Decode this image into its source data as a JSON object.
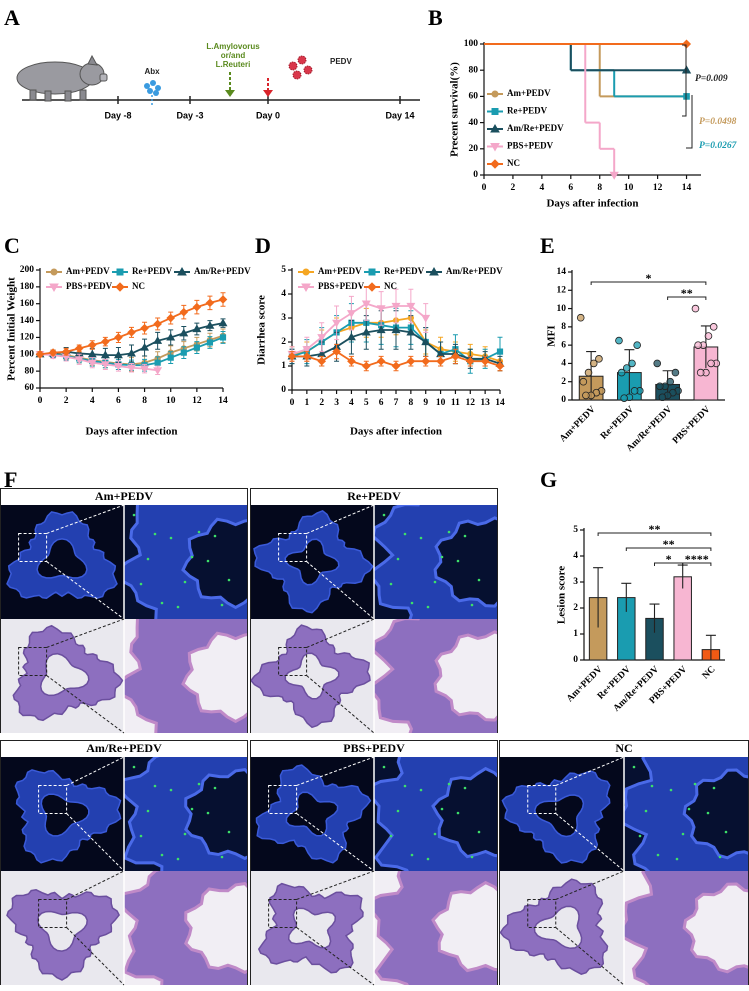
{
  "panel_labels": [
    "A",
    "B",
    "C",
    "D",
    "E",
    "F",
    "G"
  ],
  "timeline": {
    "days": [
      "Day -8",
      "Day -3",
      "Day 0",
      "Day 14"
    ],
    "treatments": [
      "Abx",
      "L.Amylovorus",
      "or/and",
      "L.Reuteri",
      "PEDV"
    ]
  },
  "chart_data": [
    {
      "type": "survival",
      "x_label": "Days after infection",
      "y_label": "Precent survival(%)",
      "xlim": [
        0,
        15
      ],
      "xticks": [
        0,
        2,
        4,
        6,
        8,
        10,
        12,
        14
      ],
      "ylim": [
        0,
        100
      ],
      "yticks": [
        0,
        20,
        40,
        60,
        80,
        100
      ],
      "series": [
        {
          "name": "Am+PEDV",
          "color": "#c49a5c",
          "x": [
            0,
            8,
            14
          ],
          "values": [
            100,
            60,
            60
          ]
        },
        {
          "name": "Re+PEDV",
          "color": "#1a9cb0",
          "x": [
            0,
            6,
            9,
            14
          ],
          "values": [
            100,
            80,
            60,
            60
          ]
        },
        {
          "name": "Am/Re+PEDV",
          "color": "#1b4f5e",
          "x": [
            0,
            6,
            14
          ],
          "values": [
            100,
            80,
            80
          ]
        },
        {
          "name": "PBS+PEDV",
          "color": "#f4a7c9",
          "x": [
            0,
            7,
            8,
            9
          ],
          "values": [
            100,
            40,
            20,
            0
          ]
        },
        {
          "name": "NC",
          "color": "#f26b1d",
          "x": [
            0,
            14
          ],
          "values": [
            100,
            100
          ]
        }
      ],
      "annotations": [
        {
          "text": "P=0.009",
          "color": "#222222"
        },
        {
          "text": "P=0.0498",
          "color": "#c49a5c"
        },
        {
          "text": "P=0.0267",
          "color": "#1a9cb0"
        }
      ]
    },
    {
      "type": "line",
      "x_label": "Days after infection",
      "y_label": "Percent Initial Weight",
      "xlim": [
        0,
        14
      ],
      "xticks": [
        0,
        2,
        4,
        6,
        8,
        10,
        12,
        14
      ],
      "ylim": [
        60,
        200
      ],
      "yticks": [
        60,
        80,
        100,
        120,
        140,
        160,
        180,
        200
      ],
      "x": [
        0,
        1,
        2,
        3,
        4,
        5,
        6,
        7,
        8,
        9,
        10,
        11,
        12,
        13,
        14
      ],
      "series": [
        {
          "name": "Am+PEDV",
          "color": "#c49a5c",
          "values": [
            100,
            101,
            99,
            96,
            93,
            91,
            89,
            88,
            90,
            95,
            102,
            107,
            112,
            117,
            122
          ],
          "errors": [
            3,
            4,
            5,
            6,
            6,
            7,
            7,
            8,
            8,
            8,
            8,
            8,
            8,
            8,
            8
          ]
        },
        {
          "name": "Re+PEDV",
          "color": "#1a9cb0",
          "values": [
            100,
            100,
            98,
            95,
            92,
            90,
            88,
            87,
            87,
            90,
            96,
            102,
            108,
            114,
            120
          ],
          "errors": [
            3,
            4,
            5,
            5,
            6,
            6,
            6,
            6,
            7,
            7,
            7,
            7,
            7,
            7,
            7
          ]
        },
        {
          "name": "Am/Re+PEDV",
          "color": "#1b4f5e",
          "values": [
            100,
            101,
            103,
            101,
            100,
            99,
            99,
            101,
            108,
            116,
            120,
            125,
            130,
            134,
            137
          ],
          "errors": [
            3,
            4,
            5,
            6,
            7,
            8,
            9,
            10,
            10,
            10,
            9,
            8,
            7,
            6,
            5
          ]
        },
        {
          "name": "PBS+PEDV",
          "color": "#f4a7c9",
          "values": [
            100,
            99,
            97,
            94,
            90,
            88,
            86,
            84,
            83,
            81,
            null,
            null,
            null,
            null,
            null
          ],
          "errors": [
            3,
            4,
            5,
            6,
            6,
            6,
            6,
            5,
            5,
            5,
            null,
            null,
            null,
            null,
            null
          ]
        },
        {
          "name": "NC",
          "color": "#f26b1d",
          "values": [
            100,
            102,
            103,
            107,
            111,
            115,
            120,
            126,
            131,
            136,
            143,
            150,
            156,
            161,
            165
          ],
          "errors": [
            3,
            3,
            4,
            4,
            5,
            5,
            6,
            6,
            7,
            7,
            7,
            8,
            8,
            8,
            8
          ]
        }
      ]
    },
    {
      "type": "line",
      "x_label": "Days after infection",
      "y_label": "Diarrhea score",
      "xlim": [
        0,
        14
      ],
      "xticks": [
        0,
        1,
        2,
        3,
        4,
        5,
        6,
        7,
        8,
        9,
        10,
        11,
        12,
        13,
        14
      ],
      "ylim": [
        0,
        5
      ],
      "yticks": [
        0,
        1,
        2,
        3,
        4,
        5
      ],
      "x": [
        0,
        1,
        2,
        3,
        4,
        5,
        6,
        7,
        8,
        9,
        10,
        11,
        12,
        13,
        14
      ],
      "series": [
        {
          "name": "Am+PEDV",
          "color": "#f5a623",
          "values": [
            1.5,
            1.6,
            2.0,
            2.4,
            2.6,
            2.8,
            2.8,
            2.9,
            3.0,
            2.0,
            1.7,
            1.6,
            1.5,
            1.4,
            1.2
          ],
          "errors": [
            0.3,
            0.4,
            0.5,
            0.6,
            0.6,
            0.6,
            0.6,
            0.6,
            0.6,
            0.5,
            0.5,
            0.4,
            0.4,
            0.4,
            0.4
          ]
        },
        {
          "name": "Re+PEDV",
          "color": "#1a9cb0",
          "values": [
            1.4,
            1.6,
            2.0,
            2.4,
            2.8,
            2.8,
            2.7,
            2.6,
            2.6,
            2.0,
            1.5,
            1.7,
            1.2,
            1.3,
            1.6
          ],
          "errors": [
            0.3,
            0.5,
            0.6,
            0.7,
            0.8,
            0.8,
            0.8,
            0.8,
            0.7,
            0.6,
            0.5,
            0.6,
            0.5,
            0.4,
            0.6
          ]
        },
        {
          "name": "Am/Re+PEDV",
          "color": "#1b4f5e",
          "values": [
            1.4,
            1.4,
            1.5,
            1.8,
            2.2,
            2.4,
            2.5,
            2.5,
            2.4,
            2.0,
            1.5,
            1.5,
            1.3,
            1.3,
            1.1
          ],
          "errors": [
            0.3,
            0.4,
            0.5,
            0.6,
            0.7,
            0.7,
            0.8,
            0.8,
            0.7,
            0.6,
            0.5,
            0.4,
            0.4,
            0.3,
            0.3
          ]
        },
        {
          "name": "PBS+PEDV",
          "color": "#f4a7c9",
          "values": [
            1.5,
            1.7,
            2.2,
            2.8,
            3.2,
            3.6,
            3.4,
            3.5,
            3.5,
            3.0,
            null,
            null,
            null,
            null,
            null
          ],
          "errors": [
            0.3,
            0.5,
            0.6,
            0.7,
            0.7,
            0.7,
            0.7,
            0.7,
            0.7,
            0.6,
            null,
            null,
            null,
            null,
            null
          ]
        },
        {
          "name": "NC",
          "color": "#f26b1d",
          "values": [
            1.4,
            1.4,
            1.2,
            1.6,
            1.2,
            1.0,
            1.2,
            1.0,
            1.2,
            1.2,
            1.2,
            1.4,
            1.2,
            1.2,
            1.0
          ],
          "errors": [
            0.2,
            0.2,
            0.2,
            0.3,
            0.2,
            0.2,
            0.2,
            0.2,
            0.2,
            0.2,
            0.2,
            0.3,
            0.2,
            0.2,
            0.2
          ]
        }
      ]
    },
    {
      "type": "bar",
      "y_label": "MFI",
      "ylim": [
        0,
        14
      ],
      "yticks": [
        0,
        2,
        4,
        6,
        8,
        10,
        12,
        14
      ],
      "categories": [
        "Am+PEDV",
        "Re+PEDV",
        "Am/Re+PEDV",
        "PBS+PEDV"
      ],
      "values": [
        2.6,
        3.0,
        1.7,
        5.8
      ],
      "errors": [
        2.7,
        2.5,
        1.5,
        2.3
      ],
      "colors": [
        "#c49a5c",
        "#1a9cb0",
        "#1b4f5e",
        "#f7b6d2"
      ],
      "points": [
        [
          9,
          4.5,
          4,
          3,
          2,
          1,
          0.8,
          0.5,
          0.5
        ],
        [
          6.5,
          6,
          4,
          3.5,
          3,
          1,
          1,
          0.3,
          0.2
        ],
        [
          4,
          3,
          2,
          1.5,
          1.5,
          1,
          0.8,
          0.5,
          0.3
        ],
        [
          10,
          8,
          7,
          6,
          6,
          4,
          4,
          3,
          3
        ]
      ],
      "significance": [
        {
          "between": [
            "Am+PEDV",
            "PBS+PEDV"
          ],
          "label": "*"
        },
        {
          "between": [
            "Am/Re+PEDV",
            "PBS+PEDV"
          ],
          "label": "**"
        }
      ]
    },
    {
      "type": "bar",
      "y_label": "Lesion score",
      "ylim": [
        0,
        5
      ],
      "yticks": [
        0,
        1,
        2,
        3,
        4,
        5
      ],
      "categories": [
        "Am+PEDV",
        "Re+PEDV",
        "Am/Re+PEDV",
        "PBS+PEDV",
        "NC"
      ],
      "values": [
        2.4,
        2.4,
        1.6,
        3.2,
        0.4
      ],
      "errors": [
        1.15,
        0.55,
        0.55,
        0.45,
        0.55
      ],
      "colors": [
        "#c49a5c",
        "#1a9cb0",
        "#1b4f5e",
        "#f7b6d2",
        "#f05a14"
      ],
      "significance": [
        {
          "between": [
            "Am+PEDV",
            "NC"
          ],
          "label": "**"
        },
        {
          "between": [
            "Re+PEDV",
            "NC"
          ],
          "label": "**"
        },
        {
          "between": [
            "Am/Re+PEDV",
            "PBS+PEDV"
          ],
          "label": "*"
        },
        {
          "between": [
            "PBS+PEDV",
            "NC"
          ],
          "label": "****"
        }
      ]
    }
  ],
  "histology": {
    "groups": [
      "Am+PEDV",
      "Re+PEDV",
      "Am/Re+PEDV",
      "PBS+PEDV",
      "NC"
    ]
  }
}
